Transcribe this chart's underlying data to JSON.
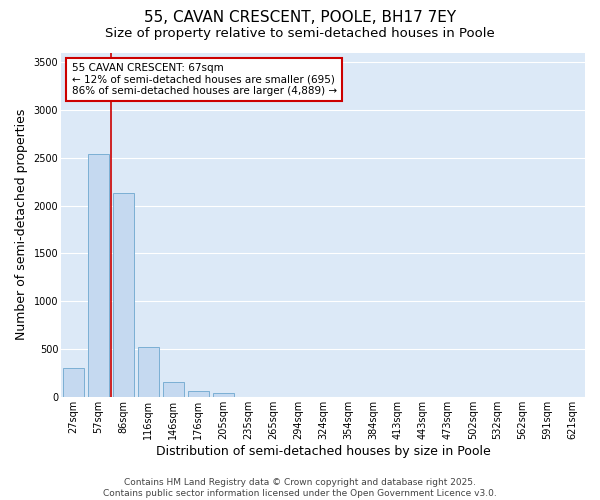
{
  "title": "55, CAVAN CRESCENT, POOLE, BH17 7EY",
  "subtitle": "Size of property relative to semi-detached houses in Poole",
  "xlabel": "Distribution of semi-detached houses by size in Poole",
  "ylabel": "Number of semi-detached properties",
  "categories": [
    "27sqm",
    "57sqm",
    "86sqm",
    "116sqm",
    "146sqm",
    "176sqm",
    "205sqm",
    "235sqm",
    "265sqm",
    "294sqm",
    "324sqm",
    "354sqm",
    "384sqm",
    "413sqm",
    "443sqm",
    "473sqm",
    "502sqm",
    "532sqm",
    "562sqm",
    "591sqm",
    "621sqm"
  ],
  "values": [
    300,
    2540,
    2130,
    520,
    150,
    65,
    40,
    0,
    0,
    0,
    0,
    0,
    0,
    0,
    0,
    0,
    0,
    0,
    0,
    0,
    0
  ],
  "bar_color": "#c5d9f0",
  "bar_edgecolor": "#7bafd4",
  "fig_background_color": "#ffffff",
  "ax_background_color": "#dce9f7",
  "grid_color": "#ffffff",
  "property_line_color": "#cc0000",
  "property_line_x": 1.5,
  "annotation_title": "55 CAVAN CRESCENT: 67sqm",
  "annotation_line1": "← 12% of semi-detached houses are smaller (695)",
  "annotation_line2": "86% of semi-detached houses are larger (4,889) →",
  "annotation_box_edgecolor": "#cc0000",
  "annotation_box_facecolor": "#ffffff",
  "ylim": [
    0,
    3600
  ],
  "yticks": [
    0,
    500,
    1000,
    1500,
    2000,
    2500,
    3000,
    3500
  ],
  "footer_line1": "Contains HM Land Registry data © Crown copyright and database right 2025.",
  "footer_line2": "Contains public sector information licensed under the Open Government Licence v3.0.",
  "title_fontsize": 11,
  "subtitle_fontsize": 9.5,
  "axis_label_fontsize": 9,
  "tick_fontsize": 7,
  "annotation_fontsize": 7.5,
  "footer_fontsize": 6.5
}
